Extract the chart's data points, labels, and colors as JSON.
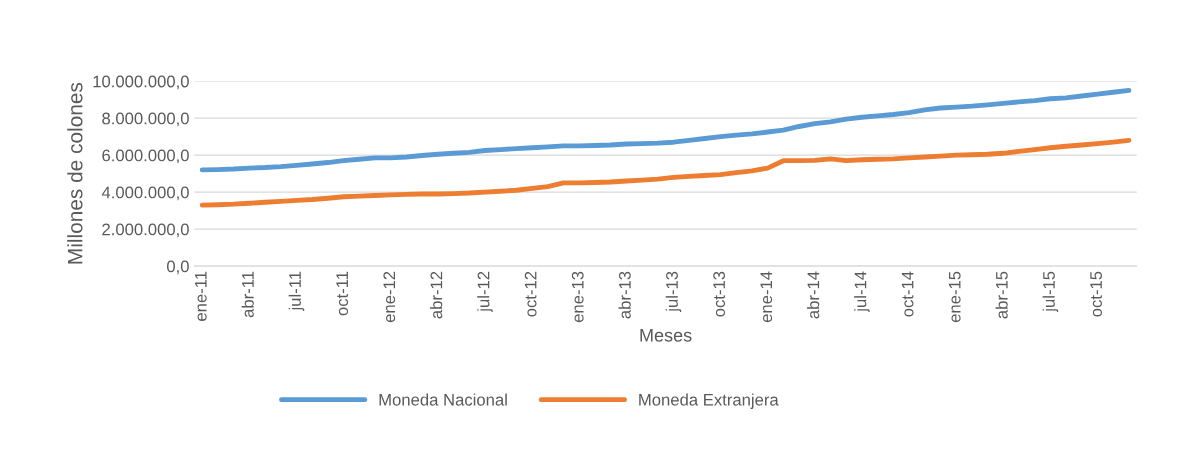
{
  "chart_data": {
    "type": "line",
    "xlabel": "Meses",
    "ylabel": "Millones de colones",
    "categories": [
      "ene-11",
      null,
      null,
      "abr-11",
      null,
      null,
      "jul-11",
      null,
      null,
      "oct-11",
      null,
      null,
      "ene-12",
      null,
      null,
      "abr-12",
      null,
      null,
      "jul-12",
      null,
      null,
      "oct-12",
      null,
      null,
      "ene-13",
      null,
      null,
      "abr-13",
      null,
      null,
      "jul-13",
      null,
      null,
      "oct-13",
      null,
      null,
      "ene-14",
      null,
      null,
      "abr-14",
      null,
      null,
      "jul-14",
      null,
      null,
      "oct-14",
      null,
      null,
      "ene-15",
      null,
      null,
      "abr-15",
      null,
      null,
      "jul-15",
      null,
      null,
      "oct-15",
      null,
      null
    ],
    "series": [
      {
        "name": "Moneda Nacional",
        "color": "#5b9bd5",
        "values": [
          5200000,
          5220000,
          5250000,
          5300000,
          5330000,
          5380000,
          5450000,
          5520000,
          5600000,
          5700000,
          5780000,
          5850000,
          5850000,
          5900000,
          5980000,
          6050000,
          6100000,
          6150000,
          6250000,
          6300000,
          6350000,
          6400000,
          6450000,
          6500000,
          6500000,
          6520000,
          6550000,
          6600000,
          6620000,
          6650000,
          6700000,
          6800000,
          6900000,
          7000000,
          7080000,
          7150000,
          7250000,
          7350000,
          7550000,
          7700000,
          7800000,
          7950000,
          8050000,
          8120000,
          8200000,
          8300000,
          8450000,
          8550000,
          8600000,
          8650000,
          8720000,
          8800000,
          8880000,
          8950000,
          9050000,
          9100000,
          9200000,
          9300000,
          9400000,
          9500000
        ]
      },
      {
        "name": "Moneda Extranjera",
        "color": "#ed7d31",
        "values": [
          3300000,
          3320000,
          3350000,
          3400000,
          3450000,
          3500000,
          3550000,
          3600000,
          3670000,
          3750000,
          3780000,
          3820000,
          3850000,
          3880000,
          3900000,
          3900000,
          3920000,
          3950000,
          4000000,
          4050000,
          4100000,
          4200000,
          4300000,
          4500000,
          4500000,
          4520000,
          4550000,
          4600000,
          4650000,
          4700000,
          4800000,
          4850000,
          4900000,
          4950000,
          5050000,
          5150000,
          5300000,
          5700000,
          5700000,
          5720000,
          5800000,
          5700000,
          5750000,
          5780000,
          5800000,
          5850000,
          5900000,
          5950000,
          6000000,
          6020000,
          6050000,
          6100000,
          6200000,
          6300000,
          6400000,
          6480000,
          6550000,
          6620000,
          6700000,
          6800000
        ]
      }
    ],
    "ylim": [
      0,
      10000000
    ],
    "yticks": [
      {
        "value": 0,
        "label": "0,0"
      },
      {
        "value": 2000000,
        "label": "2.000.000,0"
      },
      {
        "value": 4000000,
        "label": "4.000.000,0"
      },
      {
        "value": 6000000,
        "label": "6.000.000,0"
      },
      {
        "value": 8000000,
        "label": "8.000.000,0"
      },
      {
        "value": 10000000,
        "label": "10.000.000,0"
      }
    ],
    "grid": "y",
    "legend": "bottom",
    "marker": "none",
    "line_style": "solid"
  }
}
